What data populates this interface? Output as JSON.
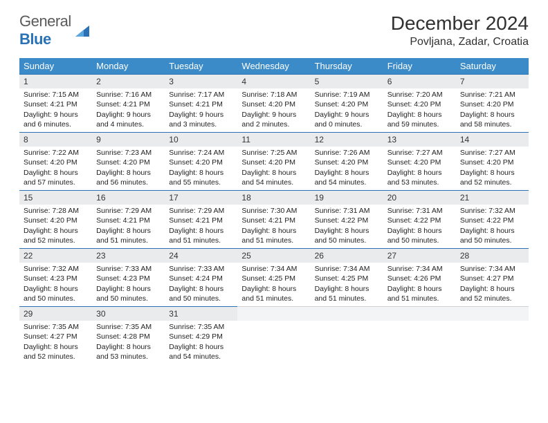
{
  "logo": {
    "text_gray": "General",
    "text_blue": "Blue"
  },
  "title": {
    "month": "December 2024",
    "location": "Povljana, Zadar, Croatia"
  },
  "colors": {
    "header_bg": "#3b8bc9",
    "header_text": "#ffffff",
    "daynum_bg": "#e9ebed",
    "week_divider": "#2a72b5",
    "body_text": "#222222",
    "logo_gray": "#5a5a5a",
    "logo_blue": "#2a72b5"
  },
  "weekdays": [
    "Sunday",
    "Monday",
    "Tuesday",
    "Wednesday",
    "Thursday",
    "Friday",
    "Saturday"
  ],
  "weeks": [
    [
      {
        "n": "1",
        "sr": "Sunrise: 7:15 AM",
        "ss": "Sunset: 4:21 PM",
        "dl": "Daylight: 9 hours and 6 minutes."
      },
      {
        "n": "2",
        "sr": "Sunrise: 7:16 AM",
        "ss": "Sunset: 4:21 PM",
        "dl": "Daylight: 9 hours and 4 minutes."
      },
      {
        "n": "3",
        "sr": "Sunrise: 7:17 AM",
        "ss": "Sunset: 4:21 PM",
        "dl": "Daylight: 9 hours and 3 minutes."
      },
      {
        "n": "4",
        "sr": "Sunrise: 7:18 AM",
        "ss": "Sunset: 4:20 PM",
        "dl": "Daylight: 9 hours and 2 minutes."
      },
      {
        "n": "5",
        "sr": "Sunrise: 7:19 AM",
        "ss": "Sunset: 4:20 PM",
        "dl": "Daylight: 9 hours and 0 minutes."
      },
      {
        "n": "6",
        "sr": "Sunrise: 7:20 AM",
        "ss": "Sunset: 4:20 PM",
        "dl": "Daylight: 8 hours and 59 minutes."
      },
      {
        "n": "7",
        "sr": "Sunrise: 7:21 AM",
        "ss": "Sunset: 4:20 PM",
        "dl": "Daylight: 8 hours and 58 minutes."
      }
    ],
    [
      {
        "n": "8",
        "sr": "Sunrise: 7:22 AM",
        "ss": "Sunset: 4:20 PM",
        "dl": "Daylight: 8 hours and 57 minutes."
      },
      {
        "n": "9",
        "sr": "Sunrise: 7:23 AM",
        "ss": "Sunset: 4:20 PM",
        "dl": "Daylight: 8 hours and 56 minutes."
      },
      {
        "n": "10",
        "sr": "Sunrise: 7:24 AM",
        "ss": "Sunset: 4:20 PM",
        "dl": "Daylight: 8 hours and 55 minutes."
      },
      {
        "n": "11",
        "sr": "Sunrise: 7:25 AM",
        "ss": "Sunset: 4:20 PM",
        "dl": "Daylight: 8 hours and 54 minutes."
      },
      {
        "n": "12",
        "sr": "Sunrise: 7:26 AM",
        "ss": "Sunset: 4:20 PM",
        "dl": "Daylight: 8 hours and 54 minutes."
      },
      {
        "n": "13",
        "sr": "Sunrise: 7:27 AM",
        "ss": "Sunset: 4:20 PM",
        "dl": "Daylight: 8 hours and 53 minutes."
      },
      {
        "n": "14",
        "sr": "Sunrise: 7:27 AM",
        "ss": "Sunset: 4:20 PM",
        "dl": "Daylight: 8 hours and 52 minutes."
      }
    ],
    [
      {
        "n": "15",
        "sr": "Sunrise: 7:28 AM",
        "ss": "Sunset: 4:20 PM",
        "dl": "Daylight: 8 hours and 52 minutes."
      },
      {
        "n": "16",
        "sr": "Sunrise: 7:29 AM",
        "ss": "Sunset: 4:21 PM",
        "dl": "Daylight: 8 hours and 51 minutes."
      },
      {
        "n": "17",
        "sr": "Sunrise: 7:29 AM",
        "ss": "Sunset: 4:21 PM",
        "dl": "Daylight: 8 hours and 51 minutes."
      },
      {
        "n": "18",
        "sr": "Sunrise: 7:30 AM",
        "ss": "Sunset: 4:21 PM",
        "dl": "Daylight: 8 hours and 51 minutes."
      },
      {
        "n": "19",
        "sr": "Sunrise: 7:31 AM",
        "ss": "Sunset: 4:22 PM",
        "dl": "Daylight: 8 hours and 50 minutes."
      },
      {
        "n": "20",
        "sr": "Sunrise: 7:31 AM",
        "ss": "Sunset: 4:22 PM",
        "dl": "Daylight: 8 hours and 50 minutes."
      },
      {
        "n": "21",
        "sr": "Sunrise: 7:32 AM",
        "ss": "Sunset: 4:22 PM",
        "dl": "Daylight: 8 hours and 50 minutes."
      }
    ],
    [
      {
        "n": "22",
        "sr": "Sunrise: 7:32 AM",
        "ss": "Sunset: 4:23 PM",
        "dl": "Daylight: 8 hours and 50 minutes."
      },
      {
        "n": "23",
        "sr": "Sunrise: 7:33 AM",
        "ss": "Sunset: 4:23 PM",
        "dl": "Daylight: 8 hours and 50 minutes."
      },
      {
        "n": "24",
        "sr": "Sunrise: 7:33 AM",
        "ss": "Sunset: 4:24 PM",
        "dl": "Daylight: 8 hours and 50 minutes."
      },
      {
        "n": "25",
        "sr": "Sunrise: 7:34 AM",
        "ss": "Sunset: 4:25 PM",
        "dl": "Daylight: 8 hours and 51 minutes."
      },
      {
        "n": "26",
        "sr": "Sunrise: 7:34 AM",
        "ss": "Sunset: 4:25 PM",
        "dl": "Daylight: 8 hours and 51 minutes."
      },
      {
        "n": "27",
        "sr": "Sunrise: 7:34 AM",
        "ss": "Sunset: 4:26 PM",
        "dl": "Daylight: 8 hours and 51 minutes."
      },
      {
        "n": "28",
        "sr": "Sunrise: 7:34 AM",
        "ss": "Sunset: 4:27 PM",
        "dl": "Daylight: 8 hours and 52 minutes."
      }
    ],
    [
      {
        "n": "29",
        "sr": "Sunrise: 7:35 AM",
        "ss": "Sunset: 4:27 PM",
        "dl": "Daylight: 8 hours and 52 minutes."
      },
      {
        "n": "30",
        "sr": "Sunrise: 7:35 AM",
        "ss": "Sunset: 4:28 PM",
        "dl": "Daylight: 8 hours and 53 minutes."
      },
      {
        "n": "31",
        "sr": "Sunrise: 7:35 AM",
        "ss": "Sunset: 4:29 PM",
        "dl": "Daylight: 8 hours and 54 minutes."
      },
      {
        "empty": true
      },
      {
        "empty": true
      },
      {
        "empty": true
      },
      {
        "empty": true
      }
    ]
  ]
}
